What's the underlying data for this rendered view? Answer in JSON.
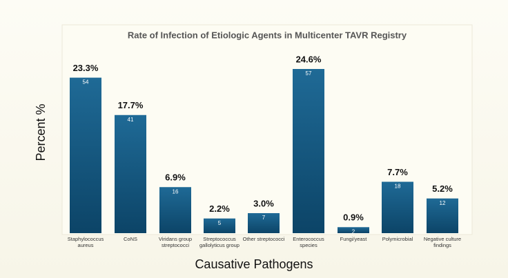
{
  "chart_data": {
    "type": "bar",
    "title": "Rate of Infection of Etiologic Agents in Multicenter TAVR Registry",
    "y_label": "Percent %",
    "x_label": "Causative Pathogens",
    "categories": [
      "Staphylococcus aureus",
      "CoNS",
      "Viridans group streptococci",
      "Streptococcus gallolyticus group",
      "Other streptococci",
      "Enterococcus species",
      "Fungi/yeast",
      "Polymicrobial",
      "Negative culture findings"
    ],
    "values": [
      23.3,
      17.7,
      6.9,
      2.2,
      3.0,
      24.6,
      0.9,
      7.7,
      5.2
    ],
    "value_labels": [
      "23.3%",
      "17.7%",
      "6.9%",
      "2.2%",
      "3.0%",
      "24.6%",
      "0.9%",
      "7.7%",
      "5.2%"
    ],
    "counts": [
      54,
      41,
      16,
      5,
      7,
      57,
      2,
      18,
      12
    ],
    "color": "#145a85"
  }
}
